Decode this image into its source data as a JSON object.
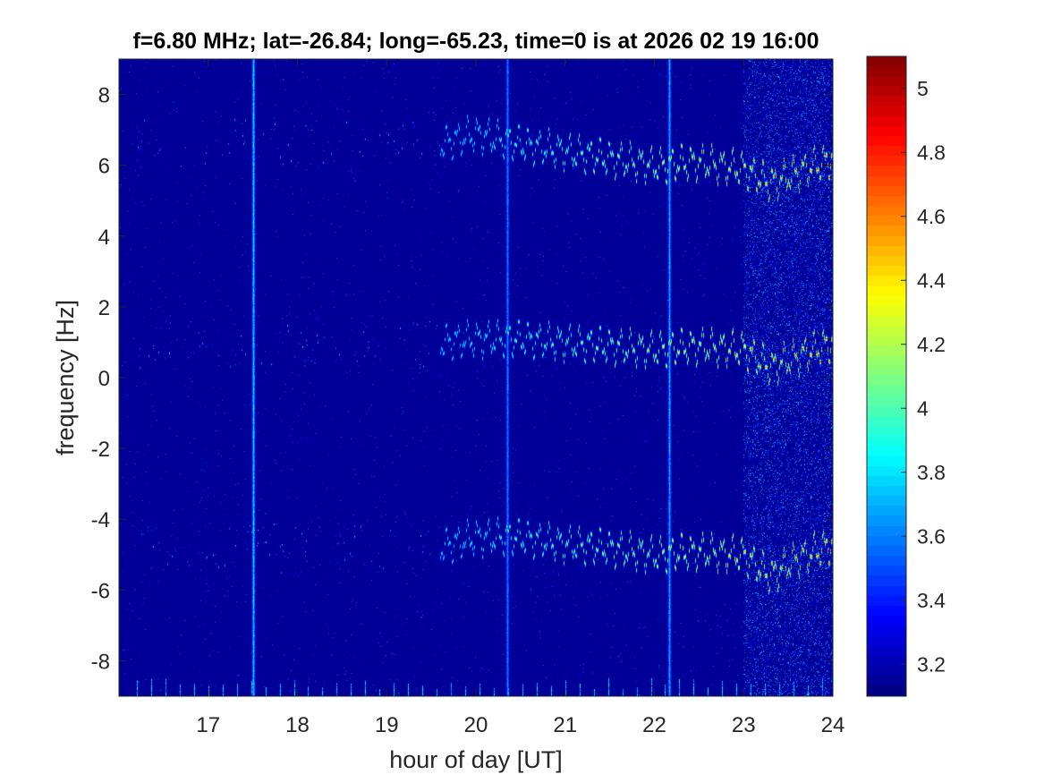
{
  "chart_data": {
    "type": "heatmap",
    "title": "f=6.80 MHz;  lat=-26.84; long=-65.23, time=0 is at 2026 02 19 16:00",
    "xlabel": "hour of day [UT]",
    "ylabel": "frequency [Hz]",
    "xlim": [
      16.0,
      24.0
    ],
    "ylim": [
      -9.0,
      9.0
    ],
    "xticks": [
      17,
      18,
      19,
      20,
      21,
      22,
      23,
      24
    ],
    "xtick_labels": [
      "17",
      "18",
      "19",
      "20",
      "21",
      "22",
      "23",
      "24"
    ],
    "yticks": [
      8,
      6,
      4,
      2,
      0,
      -2,
      -4,
      -6,
      -8
    ],
    "ytick_labels": [
      "8",
      "6",
      "4",
      "2",
      "0",
      "-2",
      "-4",
      "-6",
      "-8"
    ],
    "colormap": "jet",
    "clim": [
      3.1,
      5.1
    ],
    "colorbar_ticks": [
      5,
      4.8,
      4.6,
      4.4,
      4.2,
      4,
      3.8,
      3.6,
      3.4,
      3.2
    ],
    "colorbar_tick_labels": [
      "5",
      "4.8",
      "4.6",
      "4.4",
      "4.2",
      "4",
      "3.8",
      "3.6",
      "3.4",
      "3.2"
    ],
    "background_level": 3.15,
    "grid": false,
    "features": {
      "traces": [
        {
          "x_start": 19.6,
          "x_end": 24.0,
          "center": [
            [
              19.6,
              6.6
            ],
            [
              20.0,
              6.9
            ],
            [
              20.5,
              6.6
            ],
            [
              21.0,
              6.4
            ],
            [
              21.5,
              6.2
            ],
            [
              22.0,
              6.0
            ],
            [
              22.5,
              6.1
            ],
            [
              23.0,
              5.9
            ],
            [
              23.3,
              5.5
            ],
            [
              23.6,
              5.8
            ],
            [
              24.0,
              6.2
            ]
          ],
          "level_start": 3.9,
          "level_end": 4.9
        },
        {
          "x_start": 19.6,
          "x_end": 24.0,
          "center": [
            [
              19.6,
              1.0
            ],
            [
              20.0,
              1.1
            ],
            [
              20.5,
              1.1
            ],
            [
              21.0,
              1.0
            ],
            [
              21.5,
              0.9
            ],
            [
              22.0,
              0.8
            ],
            [
              22.5,
              0.9
            ],
            [
              23.0,
              0.8
            ],
            [
              23.3,
              0.3
            ],
            [
              23.6,
              0.6
            ],
            [
              24.0,
              1.0
            ]
          ],
          "level_start": 3.9,
          "level_end": 4.9
        },
        {
          "x_start": 19.6,
          "x_end": 24.0,
          "center": [
            [
              19.6,
              -4.8
            ],
            [
              20.0,
              -4.5
            ],
            [
              20.5,
              -4.5
            ],
            [
              21.0,
              -4.7
            ],
            [
              21.5,
              -4.8
            ],
            [
              22.0,
              -5.0
            ],
            [
              22.5,
              -4.9
            ],
            [
              23.0,
              -5.0
            ],
            [
              23.3,
              -5.6
            ],
            [
              23.6,
              -5.1
            ],
            [
              24.0,
              -4.7
            ]
          ],
          "level_start": 3.9,
          "level_end": 4.9
        }
      ],
      "vertical_lines": [
        {
          "x": 17.5,
          "level": 3.95
        },
        {
          "x": 20.35,
          "level": 3.75
        },
        {
          "x": 22.17,
          "level": 3.85
        }
      ],
      "noisy_region_after": 23.0
    }
  }
}
